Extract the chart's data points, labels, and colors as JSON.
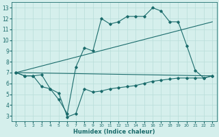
{
  "title": "",
  "xlabel": "Humidex (Indice chaleur)",
  "xlim": [
    -0.5,
    23.5
  ],
  "ylim": [
    2.5,
    13.5
  ],
  "xticks": [
    0,
    1,
    2,
    3,
    4,
    5,
    6,
    7,
    8,
    9,
    10,
    11,
    12,
    13,
    14,
    15,
    16,
    17,
    18,
    19,
    20,
    21,
    22,
    23
  ],
  "yticks": [
    3,
    4,
    5,
    6,
    7,
    8,
    9,
    10,
    11,
    12,
    13
  ],
  "bg_color": "#d5efec",
  "line_color": "#1a6b6b",
  "grid_color": "#b8ddd9",
  "line1_x": [
    0,
    1,
    2,
    3,
    4,
    5,
    6,
    7,
    8,
    9,
    10,
    11,
    12,
    13,
    14,
    15,
    16,
    17,
    18,
    19,
    20,
    21,
    22,
    23
  ],
  "line1_y": [
    7.0,
    6.7,
    6.7,
    6.8,
    5.5,
    4.5,
    3.2,
    7.5,
    9.3,
    9.0,
    12.0,
    11.5,
    11.7,
    12.2,
    12.2,
    12.2,
    13.0,
    12.7,
    11.7,
    11.7,
    9.5,
    7.2,
    6.5,
    6.7
  ],
  "line2_x": [
    0,
    23
  ],
  "line2_y": [
    7.0,
    6.7
  ],
  "line3_x": [
    0,
    1,
    2,
    3,
    4,
    5,
    6,
    7,
    8,
    9,
    10,
    11,
    12,
    13,
    14,
    15,
    16,
    17,
    18,
    19,
    20,
    21,
    22,
    23
  ],
  "line3_y": [
    7.0,
    6.7,
    6.7,
    5.7,
    5.5,
    5.1,
    2.9,
    3.2,
    5.5,
    5.2,
    5.3,
    5.5,
    5.6,
    5.7,
    5.8,
    6.0,
    6.2,
    6.3,
    6.4,
    6.5,
    6.5,
    6.5,
    6.5,
    6.7
  ],
  "line4_x": [
    0,
    23
  ],
  "line4_y": [
    7.0,
    11.7
  ]
}
